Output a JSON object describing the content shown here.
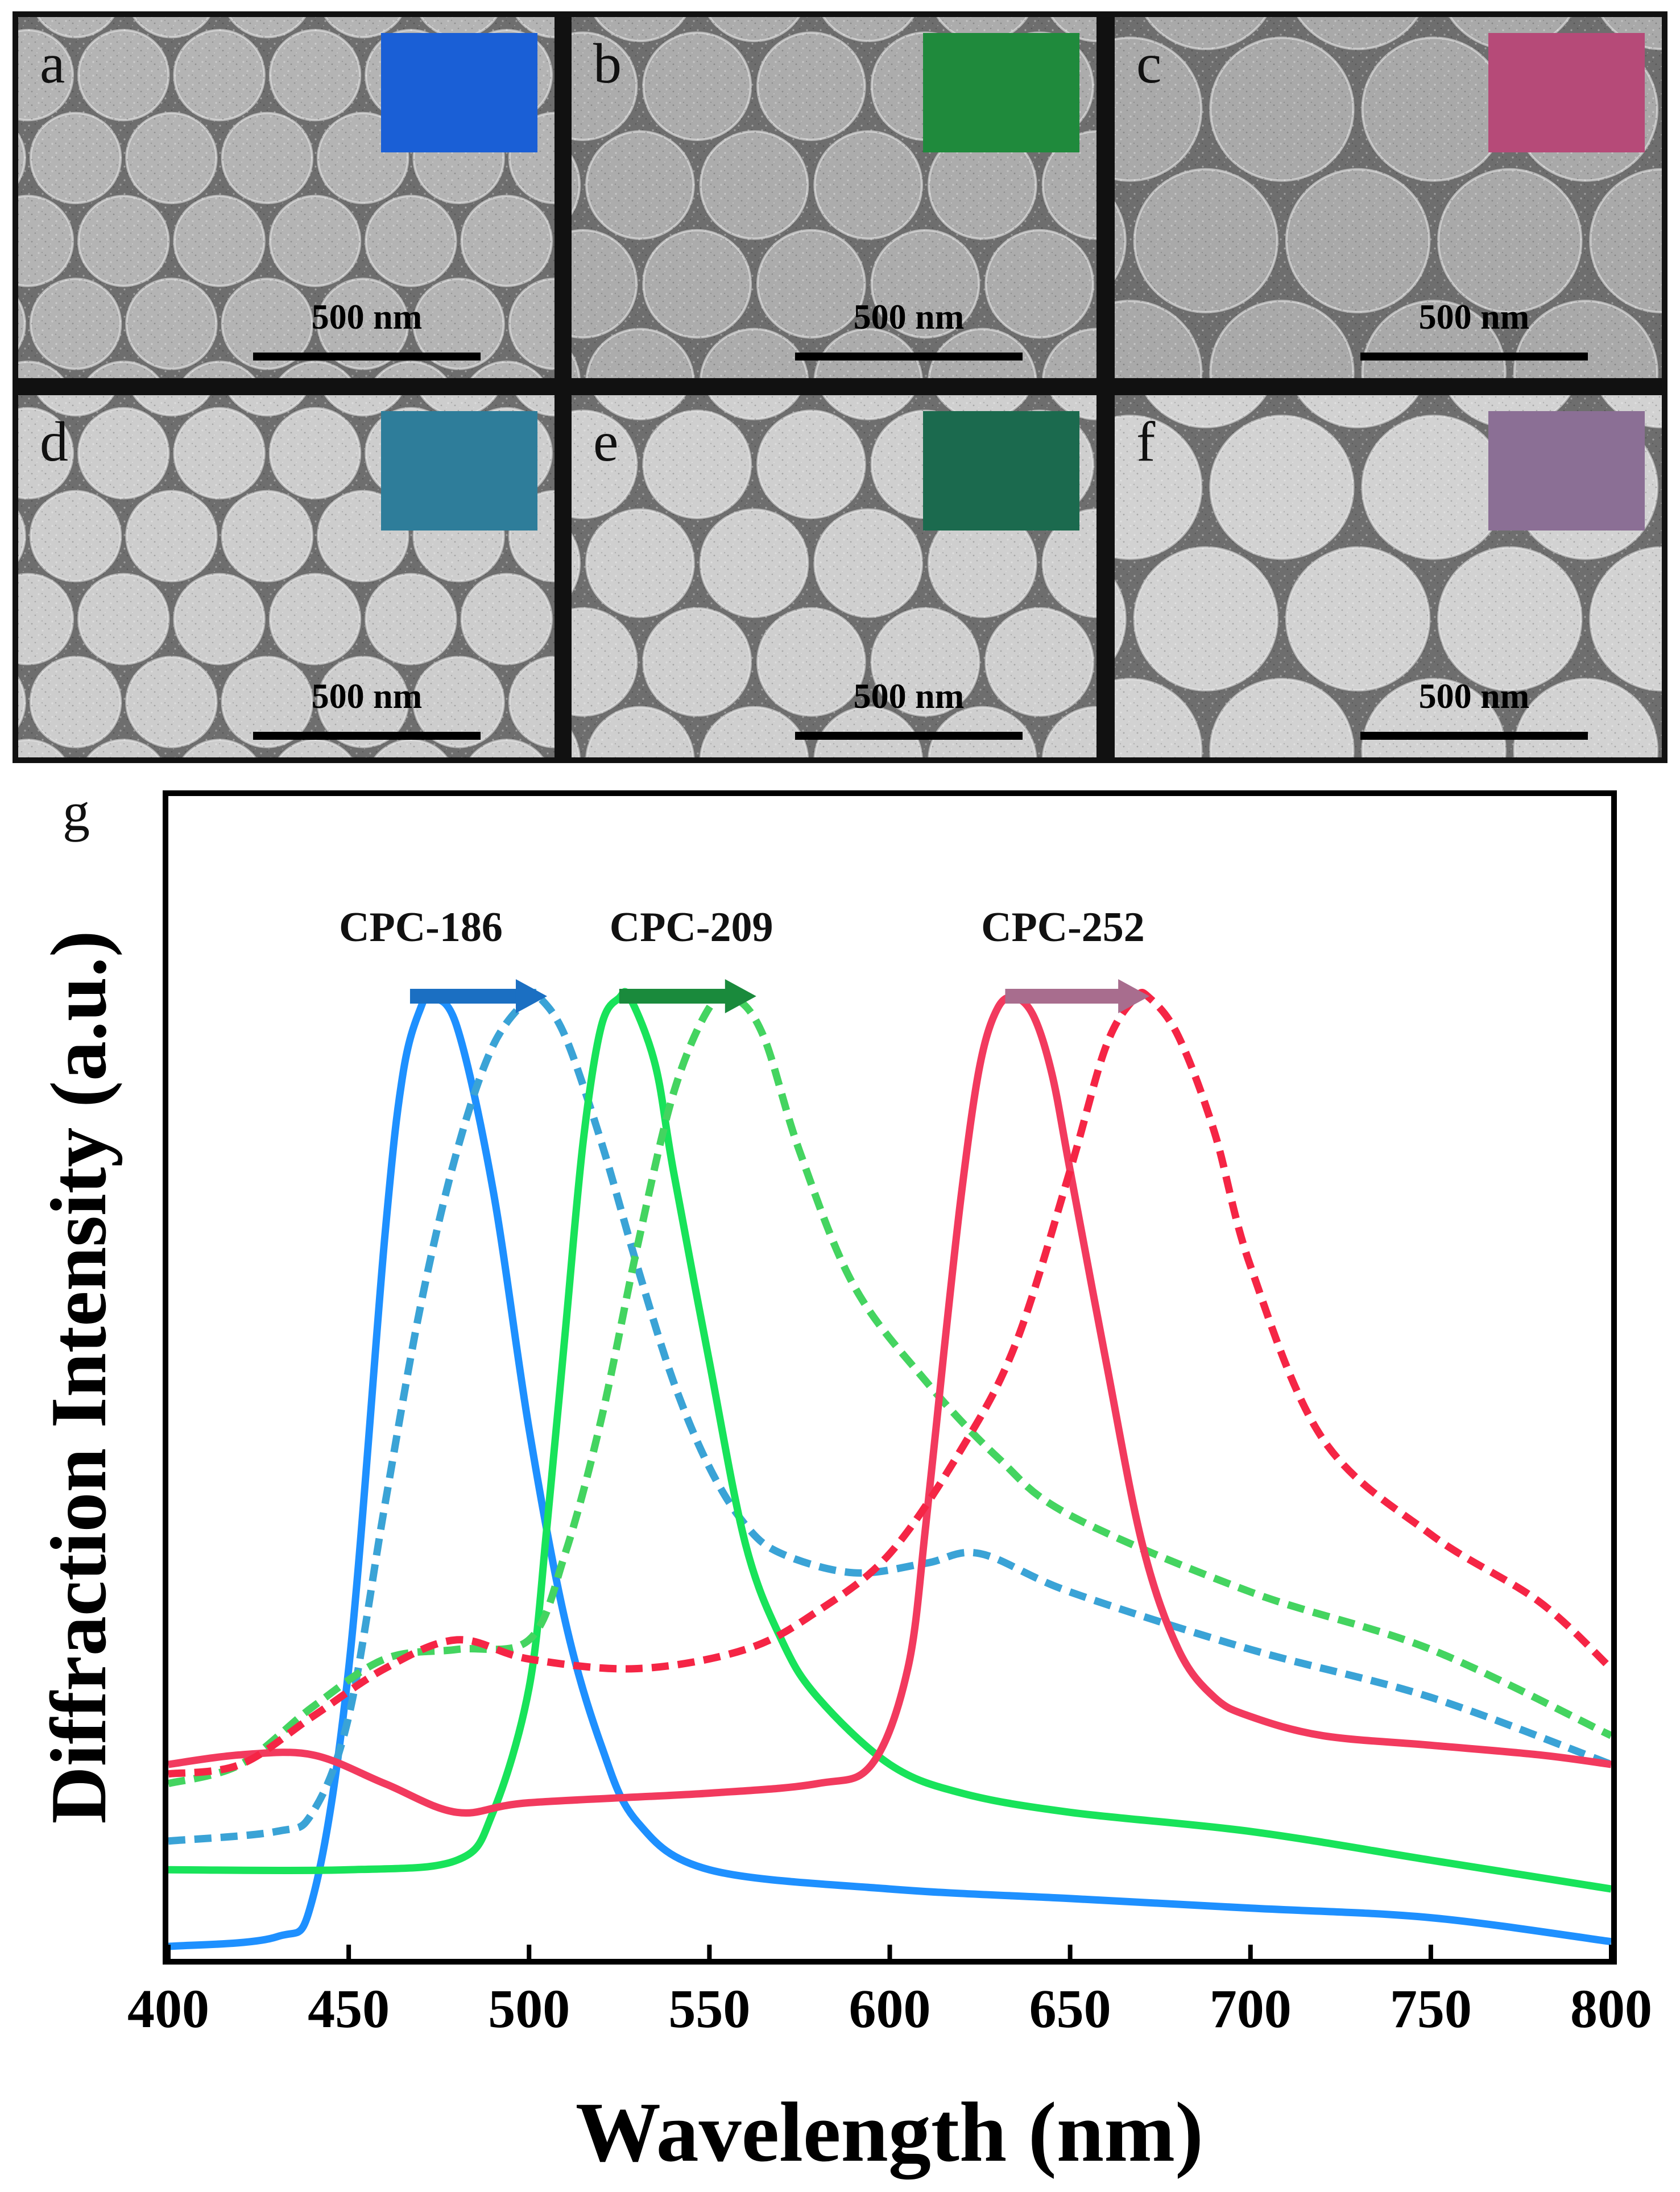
{
  "sem_panels": [
    {
      "letter": "a",
      "scale_label": "500 nm",
      "inset_color": "#1a5fd6",
      "sphere_density": 6,
      "tone": "#b4b4b4"
    },
    {
      "letter": "b",
      "scale_label": "500 nm",
      "inset_color": "#1f8a3c",
      "sphere_density": 5,
      "tone": "#acacac"
    },
    {
      "letter": "c",
      "scale_label": "500 nm",
      "inset_color": "#b64a78",
      "sphere_density": 4,
      "tone": "#a9a9a9"
    },
    {
      "letter": "d",
      "scale_label": "500 nm",
      "inset_color": "#2e7d9a",
      "sphere_density": 6,
      "tone": "#cdcdcd"
    },
    {
      "letter": "e",
      "scale_label": "500 nm",
      "inset_color": "#1b6a4e",
      "sphere_density": 5,
      "tone": "#cfcfcf"
    },
    {
      "letter": "f",
      "scale_label": "500 nm",
      "inset_color": "#8b6f95",
      "sphere_density": 4,
      "tone": "#d2d2d2"
    }
  ],
  "chart_data": {
    "type": "line",
    "panel_letter": "g",
    "xlabel": "Wavelength (nm)",
    "ylabel": "Diffraction Intensity (a.u.)",
    "xlim": [
      400,
      800
    ],
    "ylim": [
      0,
      1.05
    ],
    "xticks": [
      400,
      450,
      500,
      550,
      600,
      650,
      700,
      750,
      800
    ],
    "annotations": [
      {
        "text": "CPC-186",
        "x": 470,
        "arrow_from": 467,
        "arrow_to": 505,
        "arrow_color": "#1b6fc2"
      },
      {
        "text": "CPC-209",
        "x": 545,
        "arrow_from": 525,
        "arrow_to": 563,
        "arrow_color": "#1a8a3c"
      },
      {
        "text": "CPC-252",
        "x": 648,
        "arrow_from": 632,
        "arrow_to": 672,
        "arrow_color": "#a86d8e"
      }
    ],
    "series": [
      {
        "name": "CPC-186 solid",
        "color": "#1e90ff",
        "dashed": false,
        "x": [
          400,
          430,
          440,
          450,
          460,
          465,
          470,
          473,
          480,
          490,
          500,
          510,
          520,
          530,
          550,
          600,
          650,
          700,
          750,
          800
        ],
        "y": [
          0.01,
          0.02,
          0.06,
          0.3,
          0.75,
          0.92,
          0.99,
          1.0,
          0.97,
          0.8,
          0.55,
          0.35,
          0.22,
          0.14,
          0.09,
          0.07,
          0.06,
          0.05,
          0.04,
          0.015
        ]
      },
      {
        "name": "CPC-186 dashed",
        "color": "#3aa3d6",
        "dashed": true,
        "x": [
          400,
          430,
          440,
          450,
          460,
          470,
          480,
          490,
          500,
          503,
          510,
          520,
          530,
          540,
          550,
          560,
          570,
          590,
          610,
          625,
          650,
          700,
          750,
          800
        ],
        "y": [
          0.12,
          0.13,
          0.15,
          0.25,
          0.47,
          0.68,
          0.84,
          0.95,
          1.0,
          1.0,
          0.96,
          0.85,
          0.72,
          0.6,
          0.51,
          0.45,
          0.42,
          0.4,
          0.41,
          0.42,
          0.38,
          0.32,
          0.27,
          0.2
        ]
      },
      {
        "name": "CPC-209 solid",
        "color": "#18e35a",
        "dashed": false,
        "x": [
          400,
          450,
          480,
          490,
          500,
          505,
          510,
          515,
          520,
          525,
          528,
          535,
          540,
          550,
          560,
          570,
          580,
          600,
          620,
          650,
          700,
          750,
          800
        ],
        "y": [
          0.09,
          0.09,
          0.1,
          0.15,
          0.28,
          0.45,
          0.65,
          0.85,
          0.97,
          1.0,
          1.0,
          0.93,
          0.82,
          0.62,
          0.43,
          0.33,
          0.27,
          0.2,
          0.17,
          0.15,
          0.13,
          0.1,
          0.07
        ]
      },
      {
        "name": "CPC-209 dashed",
        "color": "#44d460",
        "dashed": true,
        "x": [
          400,
          420,
          440,
          460,
          480,
          500,
          510,
          520,
          530,
          540,
          550,
          557,
          565,
          575,
          590,
          610,
          630,
          650,
          700,
          750,
          800
        ],
        "y": [
          0.18,
          0.2,
          0.26,
          0.31,
          0.32,
          0.33,
          0.42,
          0.56,
          0.74,
          0.9,
          0.99,
          1.0,
          0.96,
          0.84,
          0.7,
          0.6,
          0.52,
          0.46,
          0.38,
          0.32,
          0.23
        ]
      },
      {
        "name": "CPC-252 solid",
        "color": "#f23a5e",
        "dashed": false,
        "x": [
          400,
          420,
          440,
          460,
          480,
          500,
          550,
          580,
          595,
          605,
          610,
          615,
          620,
          625,
          630,
          635,
          640,
          645,
          650,
          660,
          670,
          680,
          690,
          700,
          720,
          750,
          780,
          800
        ],
        "y": [
          0.2,
          0.21,
          0.21,
          0.18,
          0.15,
          0.16,
          0.17,
          0.18,
          0.2,
          0.3,
          0.45,
          0.63,
          0.8,
          0.93,
          0.99,
          1.0,
          0.98,
          0.92,
          0.82,
          0.62,
          0.43,
          0.32,
          0.27,
          0.25,
          0.23,
          0.22,
          0.21,
          0.2
        ]
      },
      {
        "name": "CPC-252 dashed",
        "color": "#f52545",
        "dashed": true,
        "x": [
          400,
          420,
          440,
          460,
          480,
          500,
          530,
          560,
          580,
          600,
          620,
          635,
          650,
          660,
          668,
          672,
          680,
          690,
          700,
          720,
          750,
          780,
          800
        ],
        "y": [
          0.19,
          0.2,
          0.25,
          0.3,
          0.33,
          0.31,
          0.3,
          0.32,
          0.36,
          0.42,
          0.53,
          0.64,
          0.82,
          0.95,
          1.0,
          1.0,
          0.96,
          0.86,
          0.72,
          0.54,
          0.44,
          0.37,
          0.3
        ]
      }
    ]
  }
}
